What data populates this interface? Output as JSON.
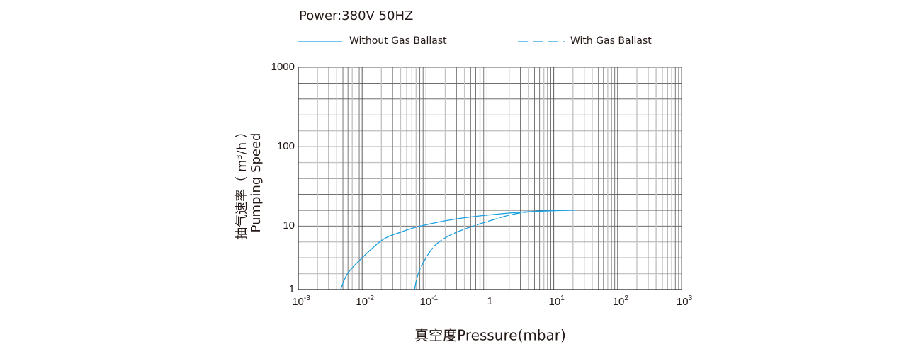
{
  "header": {
    "power": "Power:380V   50HZ"
  },
  "legend": [
    {
      "label": "Without Gas Ballast",
      "style": "solid"
    },
    {
      "label": "With Gas Ballast",
      "style": "dashed"
    }
  ],
  "chart_data": {
    "type": "line",
    "xlabel": "真空度Pressure(mbar)",
    "ylabel_cn": "抽气速率（ m³/h ）",
    "ylabel_en": "Pumping Speed",
    "x_scale": "log",
    "y_scale": "log",
    "xlim": [
      0.001,
      1000
    ],
    "ylim": [
      1,
      1000
    ],
    "x_ticks": [
      {
        "base": "10",
        "exp": "-3"
      },
      {
        "base": "10",
        "exp": "-2"
      },
      {
        "base": "10",
        "exp": "-1"
      },
      {
        "base": "1",
        "exp": ""
      },
      {
        "base": "10",
        "exp": "1"
      },
      {
        "base": "10",
        "exp": "2"
      },
      {
        "base": "10",
        "exp": "3"
      }
    ],
    "y_ticks": [
      "1",
      "10",
      "100",
      "1000"
    ],
    "grid": true,
    "line_color": "#1a9fe0",
    "series": [
      {
        "name": "Without Gas Ballast",
        "style": "solid",
        "x": [
          0.0046,
          0.0059,
          0.01,
          0.021,
          0.04,
          0.082,
          0.32,
          2.3,
          10,
          22
        ],
        "y": [
          1,
          1.78,
          3.16,
          6.1,
          8,
          10,
          12.4,
          14.7,
          15.6,
          15.8
        ]
      },
      {
        "name": "With Gas Ballast",
        "style": "dashed",
        "x": [
          0.066,
          0.078,
          0.12,
          0.18,
          0.32,
          0.85,
          2.8,
          9.8
        ],
        "y": [
          1,
          1.94,
          4.2,
          6.1,
          8.2,
          11.2,
          14.5,
          15.8
        ]
      }
    ]
  }
}
